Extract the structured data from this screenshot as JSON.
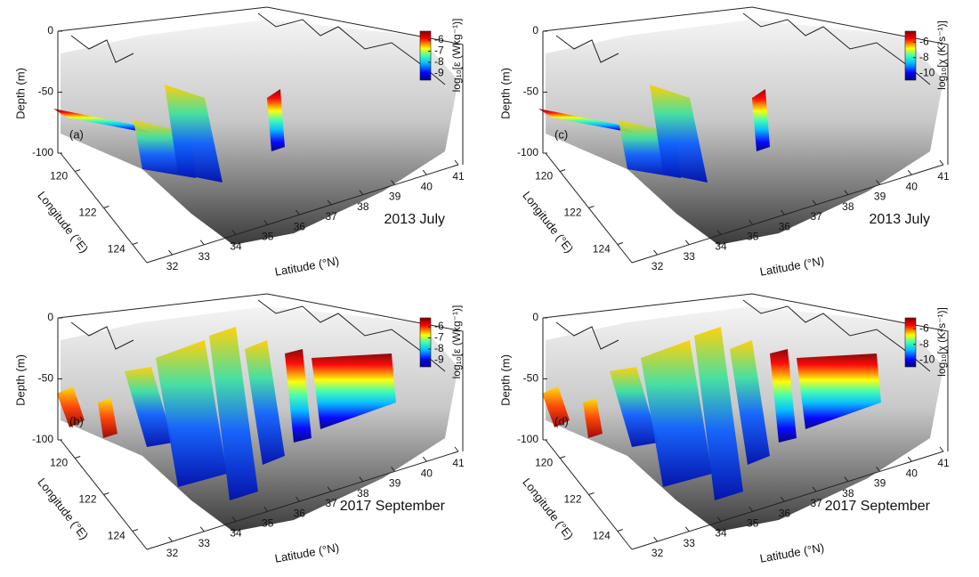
{
  "chart_data": [
    {
      "type": "surface3d",
      "panel_label": "(a)",
      "date_label": "2013 July",
      "zlabel": "Depth (m)",
      "xlabel": "Longitude (°E)",
      "ylabel": "Latitude (°N)",
      "zlim": [
        -100,
        0
      ],
      "zticks": [
        0,
        -50,
        -100
      ],
      "xlim": [
        119,
        125
      ],
      "xticks": [
        120,
        122,
        124
      ],
      "ylim": [
        31.2,
        41
      ],
      "yticks": [
        32,
        33,
        34,
        35,
        36,
        37,
        38,
        39,
        40,
        41
      ],
      "colorbar": {
        "label": "log₁₀[ε (Wkg⁻¹)]",
        "lim": [
          -9.6,
          -5.2
        ],
        "ticks": [
          -6,
          -7,
          -8,
          -9
        ],
        "colormap": "jet"
      }
    },
    {
      "type": "surface3d",
      "panel_label": "(b)",
      "date_label": "2017 September",
      "zlabel": "Depth (m)",
      "xlabel": "Longitude (°E)",
      "ylabel": "Latitude (°N)",
      "zlim": [
        -100,
        0
      ],
      "zticks": [
        0,
        -50,
        -100
      ],
      "xlim": [
        119,
        125
      ],
      "xticks": [
        120,
        122,
        124
      ],
      "ylim": [
        31.2,
        41
      ],
      "yticks": [
        32,
        33,
        34,
        35,
        36,
        37,
        38,
        39,
        40,
        41
      ],
      "colorbar": {
        "label": "log₁₀[ε (Wkg⁻¹)]",
        "lim": [
          -9.6,
          -5.2
        ],
        "ticks": [
          -6,
          -7,
          -8,
          -9
        ],
        "colormap": "jet"
      }
    },
    {
      "type": "surface3d",
      "panel_label": "(c)",
      "date_label": "2013 July",
      "zlabel": "Depth (m)",
      "xlabel": "Longitude (°E)",
      "ylabel": "Latitude (°N)",
      "zlim": [
        -100,
        0
      ],
      "zticks": [
        0,
        -50,
        -100
      ],
      "xlim": [
        119,
        125
      ],
      "xticks": [
        120,
        122,
        124
      ],
      "ylim": [
        31.2,
        41
      ],
      "yticks": [
        32,
        33,
        34,
        35,
        36,
        37,
        38,
        39,
        40,
        41
      ],
      "colorbar": {
        "label": "log₁₀[χ (K²s⁻¹)]",
        "lim": [
          -10.9,
          -4.6
        ],
        "ticks": [
          -6,
          -8,
          -10
        ],
        "colormap": "jet"
      }
    },
    {
      "type": "surface3d",
      "panel_label": "(d)",
      "date_label": "2017 September",
      "zlabel": "Depth (m)",
      "xlabel": "Longitude (°E)",
      "ylabel": "Latitude (°N)",
      "zlim": [
        -100,
        0
      ],
      "zticks": [
        0,
        -50,
        -100
      ],
      "xlim": [
        119,
        125
      ],
      "xticks": [
        120,
        122,
        124
      ],
      "ylim": [
        31.2,
        41
      ],
      "yticks": [
        32,
        33,
        34,
        35,
        36,
        37,
        38,
        39,
        40,
        41
      ],
      "colorbar": {
        "label": "log₁₀[χ (K²s⁻¹)]",
        "lim": [
          -10.9,
          -4.6
        ],
        "ticks": [
          -6,
          -8,
          -10
        ],
        "colormap": "jet"
      }
    }
  ]
}
